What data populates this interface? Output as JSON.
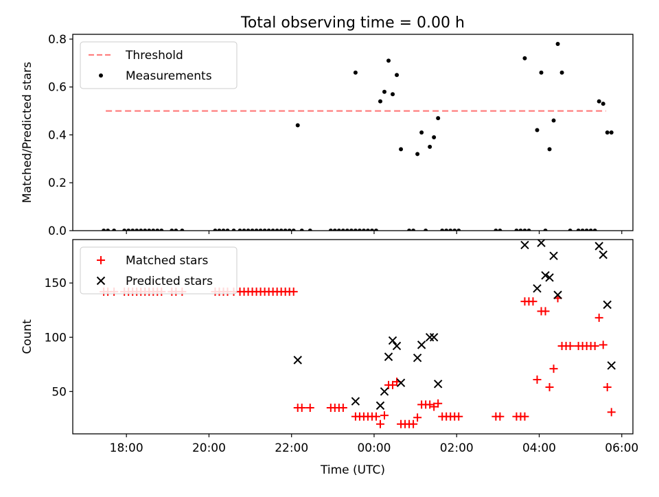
{
  "title": "Total observing time = 0.00 h",
  "chart_data": [
    {
      "type": "scatter",
      "panel": "top",
      "ylabel": "Matched/Predicted stars",
      "xlabel": "",
      "ylim": [
        0,
        0.82
      ],
      "yticks": [
        "0.0",
        "0.2",
        "0.4",
        "0.6",
        "0.8"
      ],
      "legend_position": "top-left",
      "threshold": {
        "name": "Threshold",
        "value": 0.5,
        "x_start": "17:30",
        "x_end": "05:37",
        "color": "#ff7f7f"
      },
      "series": [
        {
          "name": "Measurements",
          "color": "#000000",
          "marker": "dot",
          "points": [
            [
              "17:27",
              0
            ],
            [
              "17:33",
              0
            ],
            [
              "17:42",
              0
            ],
            [
              "17:57",
              0
            ],
            [
              "18:03",
              0
            ],
            [
              "18:09",
              0
            ],
            [
              "18:15",
              0
            ],
            [
              "18:21",
              0
            ],
            [
              "18:27",
              0
            ],
            [
              "18:33",
              0
            ],
            [
              "18:39",
              0
            ],
            [
              "18:45",
              0
            ],
            [
              "18:51",
              0
            ],
            [
              "19:06",
              0
            ],
            [
              "19:12",
              0
            ],
            [
              "19:21",
              0
            ],
            [
              "20:09",
              0
            ],
            [
              "20:15",
              0
            ],
            [
              "20:21",
              0
            ],
            [
              "20:27",
              0
            ],
            [
              "20:36",
              0
            ],
            [
              "20:45",
              0
            ],
            [
              "20:51",
              0
            ],
            [
              "20:57",
              0
            ],
            [
              "21:03",
              0
            ],
            [
              "21:09",
              0
            ],
            [
              "21:15",
              0
            ],
            [
              "21:21",
              0
            ],
            [
              "21:27",
              0
            ],
            [
              "21:33",
              0
            ],
            [
              "21:39",
              0
            ],
            [
              "21:45",
              0
            ],
            [
              "21:51",
              0
            ],
            [
              "21:57",
              0
            ],
            [
              "22:03",
              0
            ],
            [
              "22:09",
              0.44
            ],
            [
              "22:15",
              0
            ],
            [
              "22:27",
              0
            ],
            [
              "22:57",
              0
            ],
            [
              "23:03",
              0
            ],
            [
              "23:09",
              0
            ],
            [
              "23:15",
              0
            ],
            [
              "23:21",
              0
            ],
            [
              "23:27",
              0
            ],
            [
              "23:33",
              0
            ],
            [
              "23:39",
              0
            ],
            [
              "23:45",
              0
            ],
            [
              "23:51",
              0
            ],
            [
              "23:57",
              0
            ],
            [
              "00:03",
              0
            ],
            [
              "23:33",
              0.66
            ],
            [
              "00:09",
              0.54
            ],
            [
              "00:15",
              0.58
            ],
            [
              "00:21",
              0.71
            ],
            [
              "00:27",
              0.57
            ],
            [
              "00:33",
              0.65
            ],
            [
              "00:39",
              0.34
            ],
            [
              "00:51",
              0
            ],
            [
              "00:57",
              0
            ],
            [
              "01:03",
              0.32
            ],
            [
              "01:09",
              0.41
            ],
            [
              "01:15",
              0
            ],
            [
              "01:21",
              0.35
            ],
            [
              "01:27",
              0.39
            ],
            [
              "01:33",
              0.47
            ],
            [
              "01:39",
              0
            ],
            [
              "01:45",
              0
            ],
            [
              "01:51",
              0
            ],
            [
              "01:57",
              0
            ],
            [
              "02:03",
              0
            ],
            [
              "02:57",
              0
            ],
            [
              "03:03",
              0
            ],
            [
              "03:27",
              0
            ],
            [
              "03:33",
              0
            ],
            [
              "03:39",
              0
            ],
            [
              "03:45",
              0
            ],
            [
              "03:39",
              0.72
            ],
            [
              "03:57",
              0.42
            ],
            [
              "04:03",
              0.66
            ],
            [
              "04:09",
              0
            ],
            [
              "04:15",
              0.34
            ],
            [
              "04:21",
              0.46
            ],
            [
              "04:27",
              0.78
            ],
            [
              "04:33",
              0.66
            ],
            [
              "04:45",
              0
            ],
            [
              "04:57",
              0
            ],
            [
              "05:03",
              0
            ],
            [
              "05:09",
              0
            ],
            [
              "05:15",
              0
            ],
            [
              "05:21",
              0
            ],
            [
              "05:27",
              0.54
            ],
            [
              "05:33",
              0.53
            ],
            [
              "05:39",
              0.41
            ],
            [
              "05:45",
              0.41
            ]
          ]
        }
      ]
    },
    {
      "type": "scatter",
      "panel": "bottom",
      "ylabel": "Count",
      "xlabel": "Time (UTC)",
      "ylim": [
        11,
        190
      ],
      "yticks": [
        "50",
        "100",
        "150"
      ],
      "xticks": [
        "18:00",
        "20:00",
        "22:00",
        "00:00",
        "02:00",
        "04:00",
        "06:00"
      ],
      "legend_position": "top-left",
      "series": [
        {
          "name": "Matched stars",
          "color": "#ff0000",
          "marker": "plus",
          "points": [
            [
              "17:27",
              142
            ],
            [
              "17:33",
              142
            ],
            [
              "17:42",
              142
            ],
            [
              "17:57",
              142
            ],
            [
              "18:03",
              142
            ],
            [
              "18:09",
              142
            ],
            [
              "18:15",
              142
            ],
            [
              "18:21",
              142
            ],
            [
              "18:27",
              142
            ],
            [
              "18:33",
              142
            ],
            [
              "18:39",
              142
            ],
            [
              "18:45",
              142
            ],
            [
              "18:51",
              142
            ],
            [
              "19:06",
              142
            ],
            [
              "19:12",
              142
            ],
            [
              "19:21",
              142
            ],
            [
              "20:09",
              142
            ],
            [
              "20:15",
              142
            ],
            [
              "20:21",
              142
            ],
            [
              "20:27",
              142
            ],
            [
              "20:36",
              142
            ],
            [
              "20:45",
              142
            ],
            [
              "20:51",
              142
            ],
            [
              "20:57",
              142
            ],
            [
              "21:03",
              142
            ],
            [
              "21:09",
              142
            ],
            [
              "21:15",
              142
            ],
            [
              "21:21",
              142
            ],
            [
              "21:27",
              142
            ],
            [
              "21:33",
              142
            ],
            [
              "21:39",
              142
            ],
            [
              "21:45",
              142
            ],
            [
              "21:51",
              142
            ],
            [
              "21:57",
              142
            ],
            [
              "22:03",
              142
            ],
            [
              "22:09",
              35
            ],
            [
              "22:15",
              35
            ],
            [
              "22:27",
              35
            ],
            [
              "22:57",
              35
            ],
            [
              "23:03",
              35
            ],
            [
              "23:09",
              35
            ],
            [
              "23:15",
              35
            ],
            [
              "23:33",
              27
            ],
            [
              "23:39",
              27
            ],
            [
              "23:45",
              27
            ],
            [
              "23:51",
              27
            ],
            [
              "23:57",
              27
            ],
            [
              "00:03",
              27
            ],
            [
              "00:09",
              20
            ],
            [
              "00:15",
              28
            ],
            [
              "00:21",
              56
            ],
            [
              "00:27",
              56
            ],
            [
              "00:33",
              59
            ],
            [
              "00:39",
              20
            ],
            [
              "00:45",
              20
            ],
            [
              "00:51",
              20
            ],
            [
              "00:57",
              20
            ],
            [
              "01:03",
              26
            ],
            [
              "01:09",
              38
            ],
            [
              "01:15",
              38
            ],
            [
              "01:21",
              38
            ],
            [
              "01:27",
              36
            ],
            [
              "01:33",
              39
            ],
            [
              "01:39",
              27
            ],
            [
              "01:45",
              27
            ],
            [
              "01:51",
              27
            ],
            [
              "01:57",
              27
            ],
            [
              "02:03",
              27
            ],
            [
              "02:57",
              27
            ],
            [
              "03:03",
              27
            ],
            [
              "03:27",
              27
            ],
            [
              "03:33",
              27
            ],
            [
              "03:39",
              27
            ],
            [
              "03:39",
              133
            ],
            [
              "03:45",
              133
            ],
            [
              "03:51",
              133
            ],
            [
              "03:57",
              61
            ],
            [
              "04:03",
              124
            ],
            [
              "04:09",
              124
            ],
            [
              "04:15",
              54
            ],
            [
              "04:21",
              71
            ],
            [
              "04:27",
              136
            ],
            [
              "04:33",
              92
            ],
            [
              "04:39",
              92
            ],
            [
              "04:45",
              92
            ],
            [
              "04:57",
              92
            ],
            [
              "05:03",
              92
            ],
            [
              "05:09",
              92
            ],
            [
              "05:15",
              92
            ],
            [
              "05:21",
              92
            ],
            [
              "05:27",
              118
            ],
            [
              "05:33",
              93
            ],
            [
              "05:39",
              54
            ],
            [
              "05:45",
              31
            ]
          ]
        },
        {
          "name": "Predicted stars",
          "color": "#000000",
          "marker": "x",
          "points": [
            [
              "22:09",
              79
            ],
            [
              "23:33",
              41
            ],
            [
              "00:09",
              37
            ],
            [
              "00:15",
              50
            ],
            [
              "00:21",
              82
            ],
            [
              "00:27",
              97
            ],
            [
              "00:33",
              92
            ],
            [
              "00:39",
              58
            ],
            [
              "01:03",
              81
            ],
            [
              "01:09",
              93
            ],
            [
              "01:21",
              100
            ],
            [
              "01:27",
              100
            ],
            [
              "01:33",
              57
            ],
            [
              "03:39",
              185
            ],
            [
              "03:57",
              145
            ],
            [
              "04:03",
              187
            ],
            [
              "04:09",
              157
            ],
            [
              "04:15",
              155
            ],
            [
              "04:21",
              175
            ],
            [
              "04:27",
              139
            ],
            [
              "05:27",
              184
            ],
            [
              "05:33",
              176
            ],
            [
              "05:39",
              130
            ],
            [
              "05:45",
              74
            ]
          ]
        }
      ]
    }
  ]
}
